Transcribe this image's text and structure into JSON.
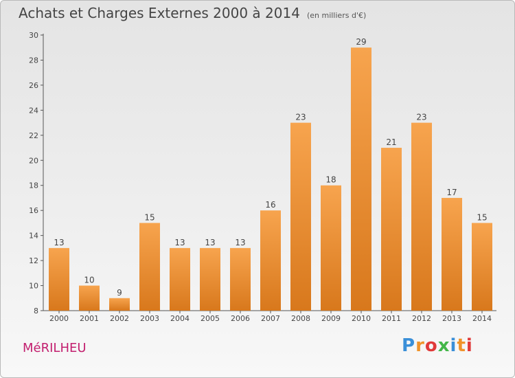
{
  "title": "Achats et Charges Externes 2000 à 2014",
  "subtitle": "(en milliers d'€)",
  "commune": "MéRILHEU",
  "logo_text": "Proxiti",
  "colors": {
    "bar_light": "#f7a44e",
    "bar_dark": "#d8781c",
    "commune": "#c21e6e",
    "logo": [
      "#3a8fd8",
      "#f0932a",
      "#e03a3a",
      "#43b649",
      "#3a8fd8",
      "#f0932a",
      "#e03a3a"
    ]
  },
  "chart_data": {
    "type": "bar",
    "categories": [
      "2000",
      "2001",
      "2002",
      "2003",
      "2004",
      "2005",
      "2006",
      "2007",
      "2008",
      "2009",
      "2010",
      "2011",
      "2012",
      "2013",
      "2014"
    ],
    "values": [
      13,
      10,
      9,
      15,
      13,
      13,
      13,
      16,
      23,
      18,
      29,
      21,
      23,
      17,
      15
    ],
    "ylim": [
      8,
      30
    ],
    "yticks": [
      8,
      10,
      12,
      14,
      16,
      18,
      20,
      22,
      24,
      26,
      28,
      30
    ],
    "grid": false,
    "legend": "none",
    "xlabel": "",
    "ylabel": ""
  }
}
